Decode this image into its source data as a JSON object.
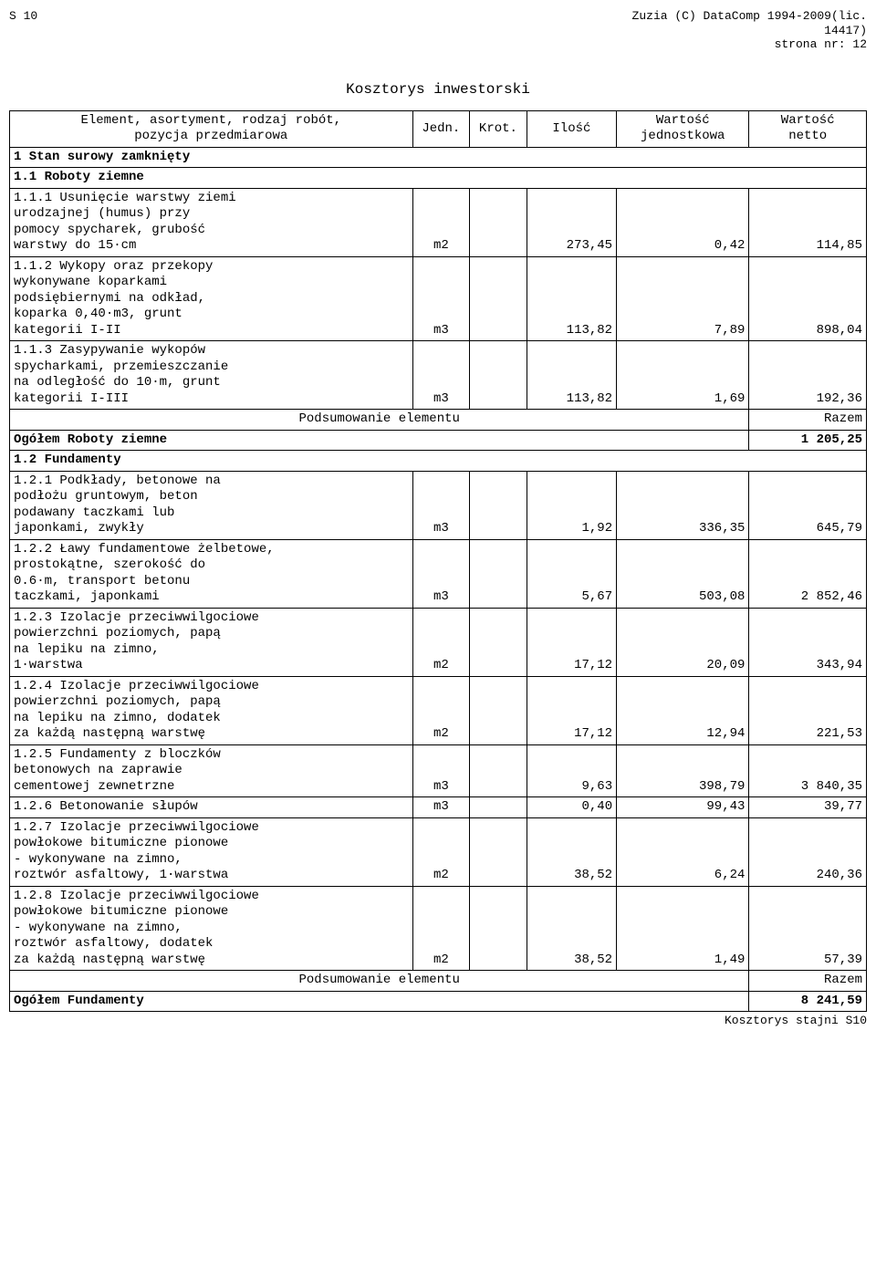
{
  "header": {
    "left": "S 10",
    "right1": "Zuzia (C) DataComp 1994-2009(lic.",
    "right2": "14417)",
    "right3": "strona nr:    12"
  },
  "title": "Kosztorys inwestorski",
  "columns": {
    "desc": "Element, asortyment, rodzaj robót,\npozycja przedmiarowa",
    "unit": "Jedn.",
    "krot": "Krot.",
    "qty": "Ilość",
    "uval": "Wartość\njednostkowa",
    "nval": "Wartość\nnetto"
  },
  "sec1": {
    "label": "1 Stan surowy zamknięty"
  },
  "sec11": {
    "label": "1.1 Roboty ziemne"
  },
  "r111": {
    "label": "1.1.1 Usunięcie warstwy ziemi\n      urodzajnej (humus) przy\n      pomocy spycharek, grubość\n      warstwy do 15·cm",
    "unit": "m2",
    "qty": "273,45",
    "uval": "0,42",
    "nval": "114,85"
  },
  "r112": {
    "label": "1.1.2 Wykopy oraz przekopy\n      wykonywane koparkami\n      podsiębiernymi na odkład,\n      koparka 0,40·m3, grunt\n      kategorii I-II",
    "unit": "m3",
    "qty": "113,82",
    "uval": "7,89",
    "nval": "898,04"
  },
  "r113": {
    "label": "1.1.3 Zasypywanie wykopów\n      spycharkami, przemieszczanie\n      na odległość do 10·m, grunt\n      kategorii I-III",
    "unit": "m3",
    "qty": "113,82",
    "uval": "1,69",
    "nval": "192,36"
  },
  "pods_label": "Podsumowanie elementu",
  "razem_label": "Razem",
  "sum11": {
    "label": "Ogółem Roboty ziemne",
    "val": "1 205,25"
  },
  "sec12": {
    "label": "1.2 Fundamenty"
  },
  "r121": {
    "label": "1.2.1 Podkłady, betonowe na\n      podłożu gruntowym, beton\n      podawany taczkami lub\n      japonkami, zwykły",
    "unit": "m3",
    "qty": "1,92",
    "uval": "336,35",
    "nval": "645,79"
  },
  "r122": {
    "label": "1.2.2 Ławy fundamentowe żelbetowe,\n      prostokątne, szerokość do\n      0.6·m, transport betonu\n      taczkami, japonkami",
    "unit": "m3",
    "qty": "5,67",
    "uval": "503,08",
    "nval": "2 852,46"
  },
  "r123": {
    "label": "1.2.3 Izolacje przeciwwilgociowe\n      powierzchni poziomych, papą\n      na lepiku na zimno,\n      1·warstwa",
    "unit": "m2",
    "qty": "17,12",
    "uval": "20,09",
    "nval": "343,94"
  },
  "r124": {
    "label": "1.2.4 Izolacje przeciwwilgociowe\n      powierzchni poziomych, papą\n      na lepiku na zimno, dodatek\n      za każdą następną warstwę",
    "unit": "m2",
    "qty": "17,12",
    "uval": "12,94",
    "nval": "221,53"
  },
  "r125": {
    "label": "1.2.5 Fundamenty z bloczków\n      betonowych na zaprawie\n      cementowej  zewnetrzne",
    "unit": "m3",
    "qty": "9,63",
    "uval": "398,79",
    "nval": "3 840,35"
  },
  "r126": {
    "label": "1.2.6 Betonowanie słupów",
    "unit": "m3",
    "qty": "0,40",
    "uval": "99,43",
    "nval": "39,77"
  },
  "r127": {
    "label": "1.2.7 Izolacje przeciwwilgociowe\n      powłokowe bitumiczne pionowe\n      - wykonywane na zimno,\n      roztwór asfaltowy, 1·warstwa",
    "unit": "m2",
    "qty": "38,52",
    "uval": "6,24",
    "nval": "240,36"
  },
  "r128": {
    "label": "1.2.8 Izolacje przeciwwilgociowe\n      powłokowe bitumiczne pionowe\n      - wykonywane na zimno,\n      roztwór asfaltowy, dodatek\n      za każdą następną warstwę",
    "unit": "m2",
    "qty": "38,52",
    "uval": "1,49",
    "nval": "57,39"
  },
  "sum12": {
    "label": "Ogółem Fundamenty",
    "val": "8 241,59"
  },
  "footer": "Kosztorys stajni S10"
}
